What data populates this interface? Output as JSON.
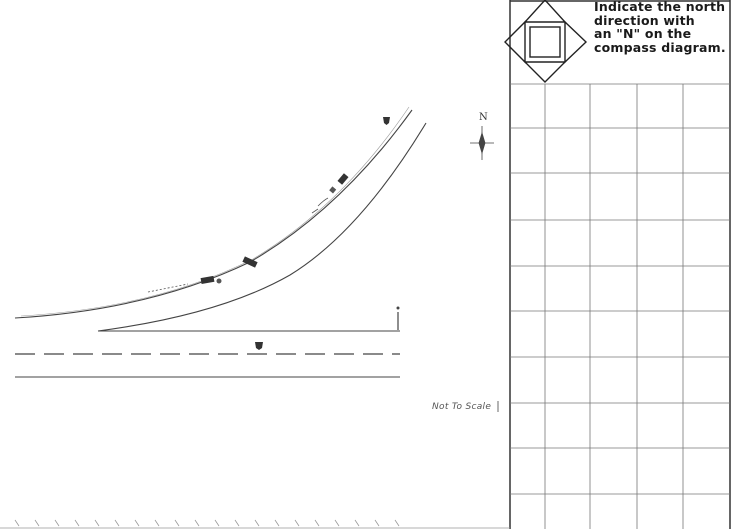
{
  "instruction": {
    "lines": [
      "Indicate the north",
      "direction with",
      "an \"N\" on the",
      "compass diagram."
    ]
  },
  "north_marker": {
    "letter": "N"
  },
  "scale_note": "Not To Scale",
  "icons": {
    "compass": "compass-diagram-icon",
    "north_arrow": "north-arrow-icon",
    "shield": "route-shield-icon",
    "vehicle": "vehicle-icon"
  },
  "colors": {
    "ink": "#333333",
    "faint": "#888888"
  }
}
